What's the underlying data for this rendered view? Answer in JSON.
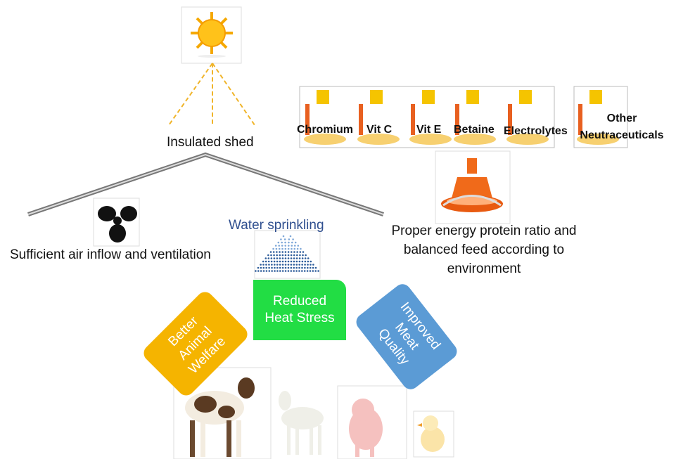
{
  "header": {
    "title": "Insulated shed"
  },
  "ventilation": {
    "label": "Sufficient air inflow and ventilation"
  },
  "sprinkling": {
    "label": "Water sprinkling"
  },
  "feed": {
    "label": "Proper energy protein ratio and balanced feed according to environment"
  },
  "supplements": {
    "labels": [
      "Chromium",
      "Vit C",
      "Vit E",
      "Betaine",
      "Electrolytes",
      "Other Neutraceuticals"
    ]
  },
  "outcomes": {
    "center": "Reduced Heat Stress",
    "left": "Better Animal Welfare",
    "right": "Improved Meat Quality"
  }
}
